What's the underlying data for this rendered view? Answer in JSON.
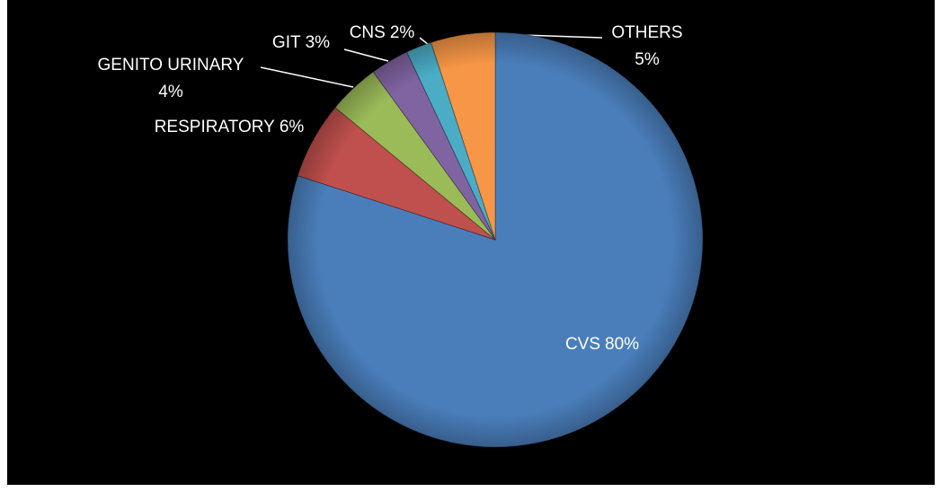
{
  "chart_data": {
    "type": "pie",
    "categories": [
      "CVS",
      "RESPIRATORY",
      "GENITO URINARY",
      "GIT",
      "CNS",
      "OTHERS"
    ],
    "values": [
      80,
      6,
      4,
      3,
      2,
      5
    ],
    "value_labels": [
      "80%",
      "6%",
      "4%",
      "3%",
      "2%",
      "5%"
    ],
    "colors": [
      "#4a7ebb",
      "#c0504d",
      "#9bbb59",
      "#8064a2",
      "#4bacc6",
      "#f79646"
    ]
  }
}
